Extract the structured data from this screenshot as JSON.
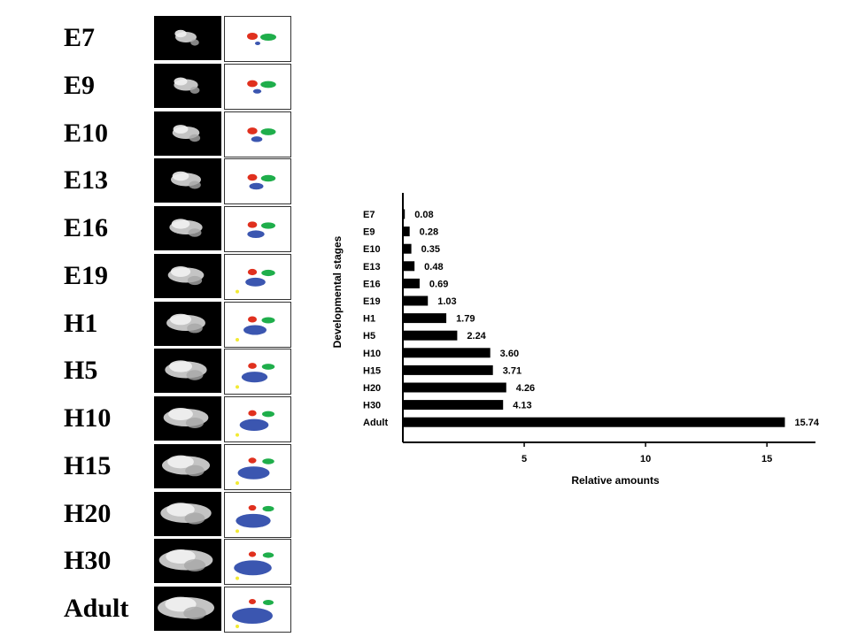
{
  "panels": {
    "stages": [
      {
        "label": "E7"
      },
      {
        "label": "E9"
      },
      {
        "label": "E10"
      },
      {
        "label": "E13"
      },
      {
        "label": "E16"
      },
      {
        "label": "E19"
      },
      {
        "label": "H1"
      },
      {
        "label": "H5"
      },
      {
        "label": "H10"
      },
      {
        "label": "H15"
      },
      {
        "label": "H20"
      },
      {
        "label": "H30"
      },
      {
        "label": "Adult"
      }
    ],
    "map_colors": {
      "red": "#e0301e",
      "green": "#1fae4b",
      "blue": "#3b56b0",
      "yellow": "#f2ea33"
    }
  },
  "chart_data": {
    "type": "bar",
    "orientation": "horizontal",
    "categories": [
      "E7",
      "E9",
      "E10",
      "E13",
      "E16",
      "E19",
      "H1",
      "H5",
      "H10",
      "H15",
      "H20",
      "H30",
      "Adult"
    ],
    "values": [
      0.08,
      0.28,
      0.35,
      0.48,
      0.69,
      1.03,
      1.79,
      2.24,
      3.6,
      3.71,
      4.26,
      4.13,
      15.74
    ],
    "value_labels": [
      "0.08",
      "0.28",
      "0.35",
      "0.48",
      "0.69",
      "1.03",
      "1.79",
      "2.24",
      "3.60",
      "3.71",
      "4.26",
      "4.13",
      "15.74"
    ],
    "xlabel": "Relative amounts",
    "ylabel": "Developmental stages",
    "xticks": [
      5,
      10,
      15
    ],
    "xtick_labels": [
      "5",
      "10",
      "15"
    ],
    "xlim": [
      0,
      17
    ],
    "bar_color": "#000000",
    "grid": false,
    "legend": "none"
  }
}
